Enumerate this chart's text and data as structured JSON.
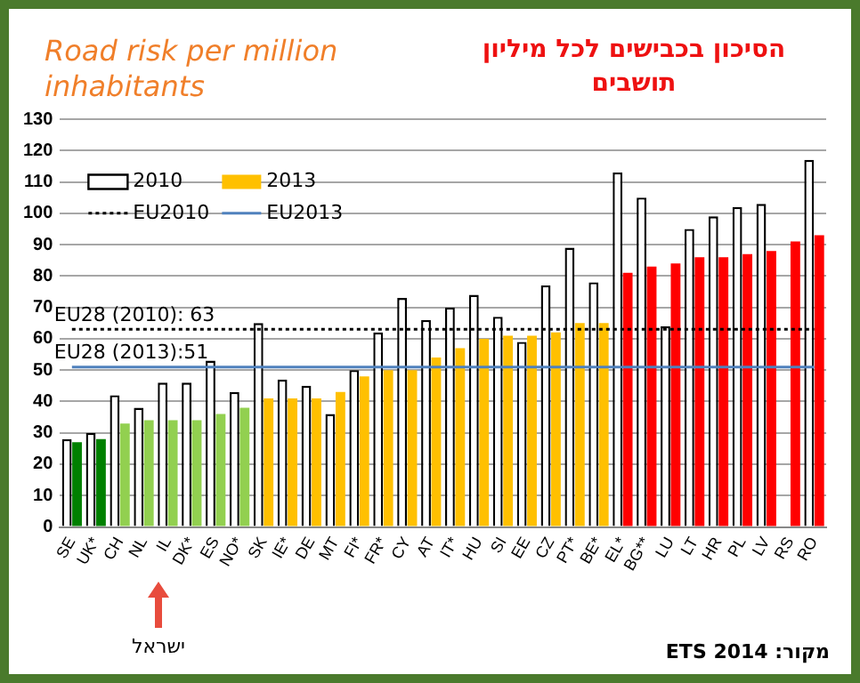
{
  "chart_data": {
    "type": "bar",
    "title": "Road risk per million inhabitants",
    "subtitle": "הסיכון בכבישים לכל מיליון תושבים",
    "categories": [
      "SE",
      "UK*",
      "CH",
      "NL",
      "IL",
      "DK*",
      "ES",
      "NO*",
      "SK",
      "IE*",
      "DE",
      "MT",
      "FI*",
      "FR*",
      "CY",
      "AT",
      "IT*",
      "HU",
      "SI",
      "EE",
      "CZ",
      "PT*",
      "BE*",
      "EL*",
      "BG**",
      "LU",
      "LT",
      "HR",
      "PL",
      "LV",
      "RS",
      "RO"
    ],
    "series": [
      {
        "name": "2010",
        "color": "#ffffff",
        "values": [
          28,
          30,
          42,
          38,
          46,
          46,
          53,
          43,
          65,
          47,
          45,
          36,
          50,
          62,
          73,
          66,
          70,
          74,
          67,
          59,
          77,
          89,
          78,
          113,
          105,
          64,
          95,
          99,
          102,
          103,
          null,
          117
        ]
      },
      {
        "name": "2013",
        "color": "#ffc000",
        "colors": [
          "#008000",
          "#008000",
          "#92d050",
          "#92d050",
          "#92d050",
          "#92d050",
          "#92d050",
          "#92d050",
          "#ffc000",
          "#ffc000",
          "#ffc000",
          "#ffc000",
          "#ffc000",
          "#ffc000",
          "#ffc000",
          "#ffc000",
          "#ffc000",
          "#ffc000",
          "#ffc000",
          "#ffc000",
          "#ffc000",
          "#ffc000",
          "#ffc000",
          "#ff0000",
          "#ff0000",
          "#ff0000",
          "#ff0000",
          "#ff0000",
          "#ff0000",
          "#ff0000",
          "#ff0000",
          "#ff0000"
        ],
        "values": [
          27,
          28,
          33,
          34,
          34,
          34,
          36,
          38,
          41,
          41,
          41,
          43,
          48,
          50,
          50,
          54,
          57,
          60,
          61,
          61,
          62,
          65,
          65,
          81,
          83,
          84,
          86,
          86,
          87,
          88,
          91,
          93
        ]
      },
      {
        "name": "EU2010",
        "type": "line",
        "color": "#000000",
        "line_style": "dotted",
        "marker": "none",
        "values": [
          63,
          63,
          63,
          63,
          63,
          63,
          63,
          63,
          63,
          63,
          63,
          63,
          63,
          63,
          63,
          63,
          63,
          63,
          63,
          63,
          63,
          63,
          63,
          63,
          63,
          63,
          63,
          63,
          63,
          63,
          63,
          63
        ]
      },
      {
        "name": "EU2013",
        "type": "line",
        "color": "#4f81bd",
        "line_style": "solid",
        "marker": "none",
        "values": [
          51,
          51,
          51,
          51,
          51,
          51,
          51,
          51,
          51,
          51,
          51,
          51,
          51,
          51,
          51,
          51,
          51,
          51,
          51,
          51,
          51,
          51,
          51,
          51,
          51,
          51,
          51,
          51,
          51,
          51,
          51,
          51
        ]
      }
    ],
    "annotations": [
      {
        "text": "EU28 (2010): 63",
        "x": "SE",
        "y": 63
      },
      {
        "text": "EU28 (2013):51",
        "x": "SE",
        "y": 51
      },
      "ישראל",
      "מקור: ETS 2014"
    ],
    "ylim": [
      0,
      130
    ],
    "yticks": [
      0,
      10,
      20,
      30,
      40,
      50,
      60,
      70,
      80,
      90,
      100,
      110,
      120,
      130
    ],
    "grid": "y",
    "legend": "top left"
  }
}
